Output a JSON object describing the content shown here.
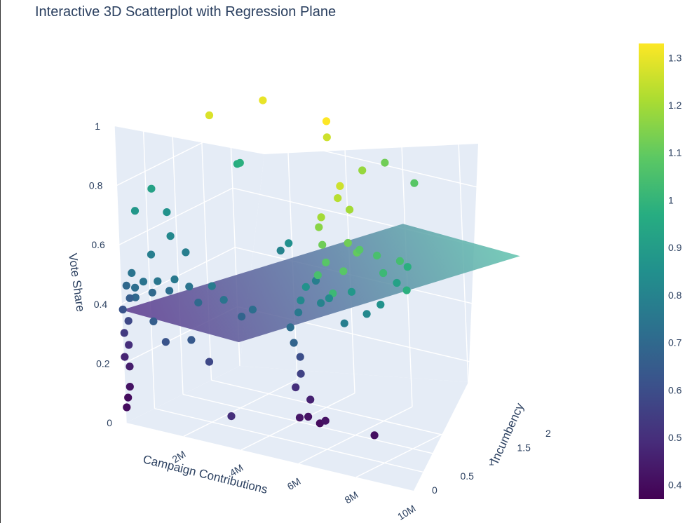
{
  "chart_data": {
    "type": "scatter",
    "title": "Interactive 3D Scatterplot with Regression Plane",
    "xlabel": "Campaign Contributions",
    "ylabel": "Incumbency",
    "zlabel": "Vote Share",
    "x_ticks": [
      "2M",
      "4M",
      "6M",
      "8M",
      "10M"
    ],
    "y_ticks": [
      "0",
      "0.5",
      "1",
      "1.5",
      "2"
    ],
    "z_ticks": [
      "0",
      "0.2",
      "0.4",
      "0.6",
      "0.8",
      "1"
    ],
    "xlim": [
      0,
      10000000
    ],
    "ylim": [
      0,
      2
    ],
    "zlim": [
      0,
      1
    ],
    "colorscale": "Viridis",
    "colorbar": {
      "ticks": [
        "0.4",
        "0.5",
        "0.6",
        "0.7",
        "0.8",
        "0.9",
        "1",
        "1.1",
        "1.2",
        "1.3"
      ],
      "min": 0.37,
      "max": 1.33
    },
    "regression_plane": {
      "intercept": 0.38,
      "slope_x_per_million": 0.052,
      "slope_y": -0.15
    },
    "points": [
      [
        0,
        0.02,
        0.05,
        0.4
      ],
      [
        0,
        0.05,
        0.08,
        0.4
      ],
      [
        100000,
        0.04,
        0.12,
        0.42
      ],
      [
        0,
        0.1,
        0.18,
        0.45
      ],
      [
        0,
        0.02,
        0.22,
        0.47
      ],
      [
        100000,
        0.05,
        0.26,
        0.5
      ],
      [
        0,
        0.03,
        0.3,
        0.54
      ],
      [
        100000,
        0.06,
        0.34,
        0.58
      ],
      [
        0,
        0.02,
        0.38,
        0.62
      ],
      [
        200000,
        0.05,
        0.42,
        0.66
      ],
      [
        100000,
        0.05,
        0.46,
        0.7
      ],
      [
        200000,
        0.1,
        0.5,
        0.74
      ],
      [
        300000,
        0.1,
        0.42,
        0.7
      ],
      [
        400000,
        0.05,
        0.46,
        0.72
      ],
      [
        600000,
        0.1,
        0.48,
        0.74
      ],
      [
        900000,
        0.1,
        0.45,
        0.7
      ],
      [
        1200000,
        0.05,
        0.5,
        0.75
      ],
      [
        1500000,
        0.1,
        0.47,
        0.72
      ],
      [
        1800000,
        0.05,
        0.52,
        0.76
      ],
      [
        2200000,
        0.1,
        0.5,
        0.74
      ],
      [
        2600000,
        0.05,
        0.46,
        0.7
      ],
      [
        3000000,
        0.1,
        0.52,
        0.77
      ],
      [
        3500000,
        0.05,
        0.49,
        0.74
      ],
      [
        4000000,
        0.1,
        0.44,
        0.68
      ],
      [
        4500000,
        0.05,
        0.48,
        0.72
      ],
      [
        1400000,
        0.05,
        0.3,
        0.62
      ],
      [
        2200000,
        0.1,
        0.32,
        0.64
      ],
      [
        1000000,
        0.05,
        0.36,
        0.66
      ],
      [
        2800000,
        0.1,
        0.26,
        0.58
      ],
      [
        3600000,
        0.05,
        0.1,
        0.5
      ],
      [
        500000,
        0.3,
        0.55,
        0.78
      ],
      [
        800000,
        0.5,
        0.6,
        0.82
      ],
      [
        300000,
        0.7,
        0.65,
        0.86
      ],
      [
        200000,
        0.2,
        0.7,
        0.88
      ],
      [
        400000,
        0.4,
        0.76,
        0.92
      ],
      [
        500000,
        0.9,
        0.5,
        0.78
      ],
      [
        5800000,
        0.05,
        0.45,
        0.72
      ],
      [
        5900000,
        0.05,
        0.4,
        0.68
      ],
      [
        6000000,
        0.1,
        0.35,
        0.6
      ],
      [
        6100000,
        0.05,
        0.3,
        0.56
      ],
      [
        5900000,
        0.05,
        0.25,
        0.5
      ],
      [
        6000000,
        0.1,
        0.5,
        0.76
      ],
      [
        6200000,
        0.05,
        0.55,
        0.82
      ],
      [
        6400000,
        0.05,
        0.6,
        0.86
      ],
      [
        6800000,
        0.1,
        0.55,
        0.8
      ],
      [
        7200000,
        0.05,
        0.58,
        0.83
      ],
      [
        7600000,
        0.1,
        0.5,
        0.78
      ],
      [
        8000000,
        0.05,
        0.62,
        0.88
      ],
      [
        8400000,
        0.1,
        0.55,
        0.82
      ],
      [
        9000000,
        0.05,
        0.6,
        0.86
      ],
      [
        9500000,
        0.1,
        0.68,
        0.92
      ],
      [
        10000000,
        0.05,
        0.75,
        0.98
      ],
      [
        6000000,
        0.05,
        0.15,
        0.43
      ],
      [
        6300000,
        0.05,
        0.16,
        0.42
      ],
      [
        6600000,
        0.1,
        0.14,
        0.4
      ],
      [
        6900000,
        0.05,
        0.16,
        0.42
      ],
      [
        8600000,
        0.05,
        0.15,
        0.41
      ],
      [
        6400000,
        0.05,
        0.22,
        0.46
      ],
      [
        5000000,
        1.1,
        0.55,
        1.08
      ],
      [
        4800000,
        1.15,
        0.6,
        1.12
      ],
      [
        4600000,
        1.2,
        0.65,
        1.16
      ],
      [
        4900000,
        1.1,
        0.7,
        1.2
      ],
      [
        5100000,
        1.3,
        0.75,
        1.23
      ],
      [
        5300000,
        1.25,
        0.8,
        1.26
      ],
      [
        5500000,
        1.3,
        0.72,
        1.2
      ],
      [
        5600000,
        1.2,
        0.62,
        1.12
      ],
      [
        4700000,
        1.1,
        0.5,
        1.05
      ],
      [
        5200000,
        1.1,
        0.45,
        1.02
      ],
      [
        5400000,
        1.2,
        0.52,
        1.08
      ],
      [
        5700000,
        1.3,
        0.58,
        1.1
      ],
      [
        6200000,
        1.1,
        0.62,
        1.08
      ],
      [
        6600000,
        1.2,
        0.6,
        1.05
      ],
      [
        7000000,
        1.1,
        0.56,
        1.02
      ],
      [
        7400000,
        1.2,
        0.6,
        1.04
      ],
      [
        7800000,
        1.1,
        0.52,
        0.98
      ],
      [
        5800000,
        1.4,
        0.85,
        1.18
      ],
      [
        6400000,
        1.5,
        0.88,
        1.12
      ],
      [
        7200000,
        1.6,
        0.82,
        1.08
      ],
      [
        4400000,
        1.5,
        0.92,
        1.26
      ],
      [
        4200000,
        1.6,
        0.96,
        1.33
      ],
      [
        2000000,
        1.6,
        0.98,
        1.3
      ],
      [
        300000,
        1.5,
        0.9,
        1.28
      ],
      [
        700000,
        1.8,
        0.72,
        0.98
      ],
      [
        400000,
        1.9,
        0.7,
        0.97
      ],
      [
        2500000,
        1.7,
        0.5,
        0.85
      ],
      [
        1800000,
        1.9,
        0.44,
        0.8
      ],
      [
        3200000,
        1.8,
        0.38,
        0.78
      ]
    ]
  }
}
